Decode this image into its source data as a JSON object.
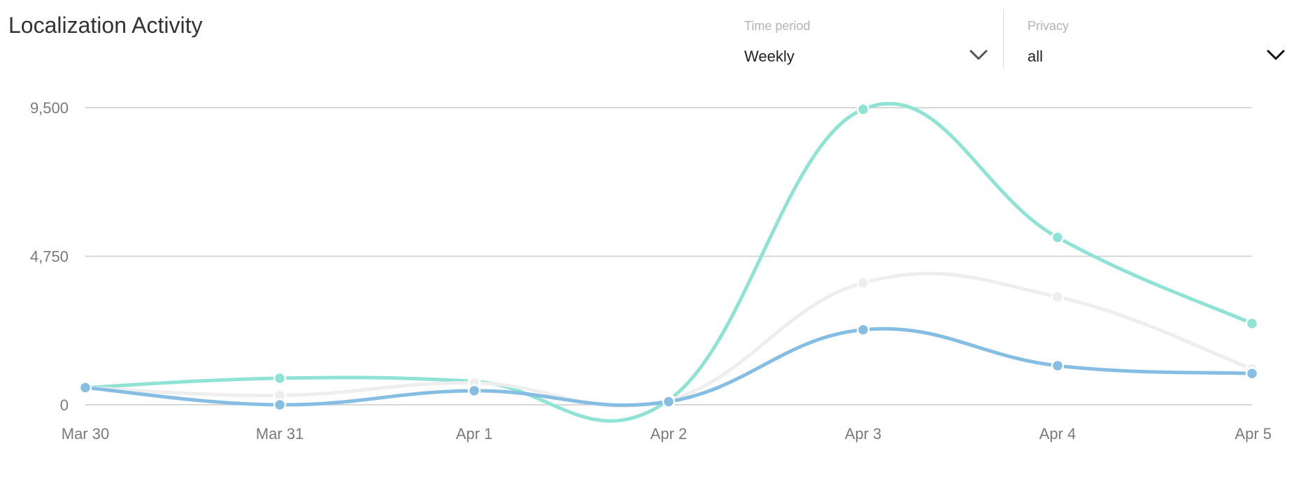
{
  "header": {
    "title": "Localization Activity"
  },
  "filters": {
    "time_period": {
      "label": "Time period",
      "value": "Weekly"
    },
    "privacy": {
      "label": "Privacy",
      "value": "all"
    }
  },
  "icons": {
    "dropdown": "chevron-down-icon"
  },
  "chart_data": {
    "type": "line",
    "smooth": true,
    "categories": [
      "Mar 30",
      "Mar 31",
      "Apr 1",
      "Apr 2",
      "Apr 3",
      "Apr 4",
      "Apr 5"
    ],
    "y_ticks": [
      0,
      4750,
      9500
    ],
    "y_tick_labels": [
      "0",
      "4,750",
      "9,500"
    ],
    "ylim": [
      0,
      9500
    ],
    "grid": true,
    "legend": "none",
    "series": [
      {
        "color": "#8fe3d4",
        "values": [
          550,
          850,
          750,
          150,
          9450,
          5350,
          2600
        ]
      },
      {
        "color": "#eeeeee",
        "values": [
          550,
          300,
          700,
          150,
          3900,
          3450,
          1150
        ]
      },
      {
        "color": "#86bde3",
        "values": [
          550,
          0,
          450,
          100,
          2400,
          1250,
          1000
        ]
      }
    ]
  }
}
